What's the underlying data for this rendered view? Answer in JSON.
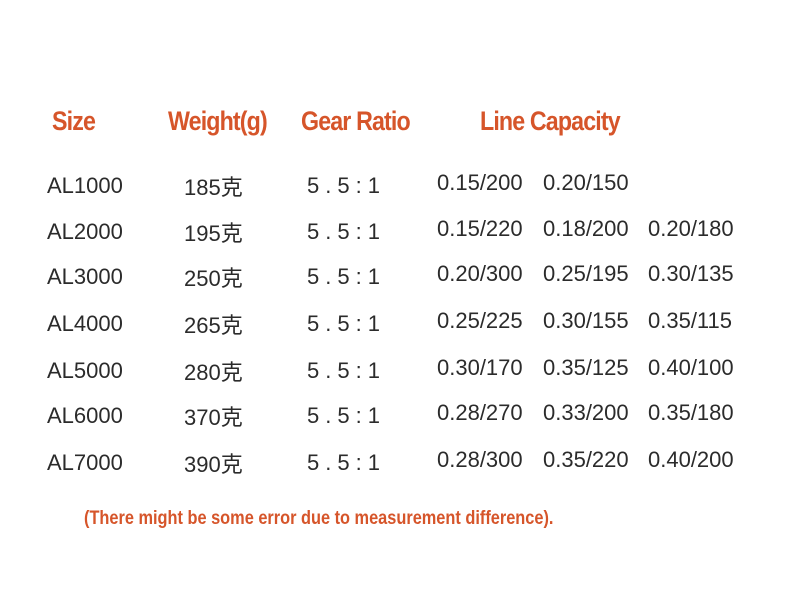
{
  "table": {
    "headers": [
      "Size",
      "Weight(g)",
      "Gear Ratio",
      "Line Capacity"
    ],
    "rows": [
      [
        "AL1000",
        "185克",
        "5.5:1",
        "0.15/200",
        "0.20/150"
      ],
      [
        "AL2000",
        "195克",
        "5.5:1",
        "0.15/220",
        "0.18/200",
        "0.20/180"
      ],
      [
        "AL3000",
        "250克",
        "5.5:1",
        "0.20/300",
        "0.25/195",
        "0.30/135"
      ],
      [
        "AL4000",
        "265克",
        "5.5:1",
        "0.25/225",
        "0.30/155",
        "0.35/115"
      ],
      [
        "AL5000",
        "280克",
        "5.5:1",
        "0.30/170",
        "0.35/125",
        "0.40/100"
      ],
      [
        "AL6000",
        "370克",
        "5.5:1",
        "0.28/270",
        "0.33/200",
        "0.35/180"
      ],
      [
        "AL7000",
        "390克",
        "5.5:1",
        "0.28/300",
        "0.35/220",
        "0.40/200"
      ]
    ],
    "note": "(There might be some error due to measurement difference)."
  }
}
